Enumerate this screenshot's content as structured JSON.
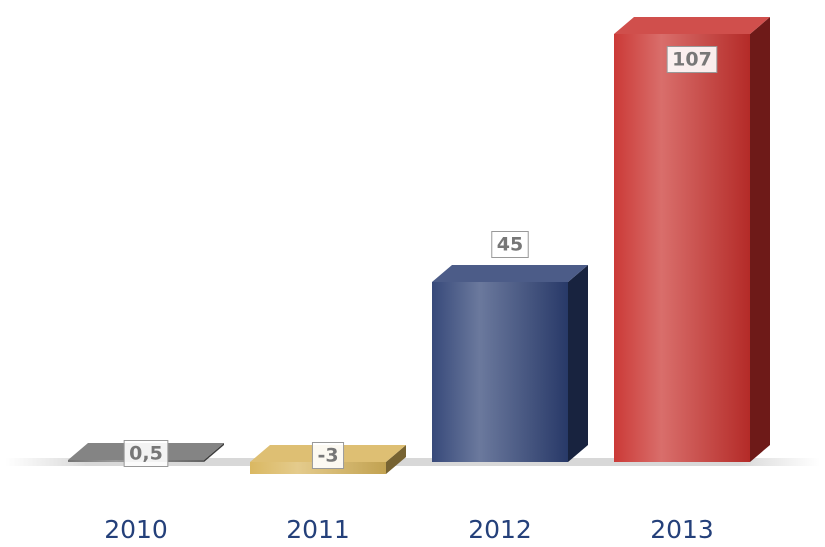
{
  "chart_data": {
    "type": "bar3d",
    "categories": [
      "2010",
      "2011",
      "2012",
      "2013"
    ],
    "values": [
      0.5,
      -3,
      45,
      107
    ],
    "value_labels": [
      "0,5",
      "-3",
      "45",
      "107"
    ],
    "colors": [
      "#6e6e6e",
      "#d8b45a",
      "#2c3f73",
      "#c8302c"
    ]
  }
}
